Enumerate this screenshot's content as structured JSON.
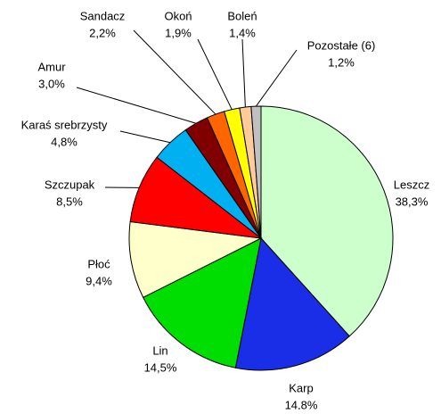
{
  "chart_data": {
    "type": "pie",
    "categories": [
      "Leszcz",
      "Karp",
      "Lin",
      "Płoć",
      "Szczupak",
      "Karaś srebrzysty",
      "Amur",
      "Sandacz",
      "Okoń",
      "Boleń",
      "Pozostałe (6)"
    ],
    "values": [
      38.3,
      14.8,
      14.5,
      9.4,
      8.5,
      4.8,
      3.0,
      2.2,
      1.9,
      1.4,
      1.2
    ],
    "value_labels": [
      "38,3%",
      "14,8%",
      "14,5%",
      "9,4%",
      "8,5%",
      "4,8%",
      "3,0%",
      "2,2%",
      "1,9%",
      "1,4%",
      "1,2%"
    ],
    "colors": [
      "#ccffcc",
      "#1a2ee8",
      "#00dd00",
      "#ffffcc",
      "#ff0000",
      "#00b0f0",
      "#800000",
      "#ff6600",
      "#ffff00",
      "#ffcc99",
      "#c0c0c0"
    ]
  }
}
